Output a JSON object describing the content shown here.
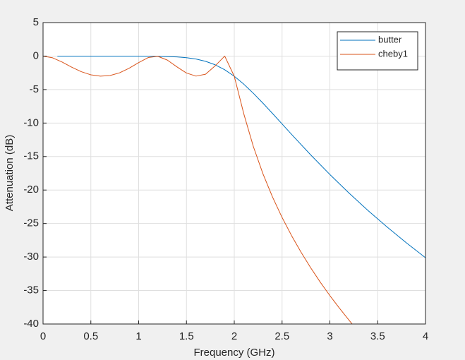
{
  "chart_data": {
    "type": "line",
    "xlabel": "Frequency (GHz)",
    "ylabel": "Attenuation (dB)",
    "xlim": [
      0,
      4
    ],
    "ylim": [
      -40,
      5
    ],
    "xticks": [
      0,
      0.5,
      1,
      1.5,
      2,
      2.5,
      3,
      3.5,
      4
    ],
    "yticks": [
      5,
      0,
      -5,
      -10,
      -15,
      -20,
      -25,
      -30,
      -35,
      -40
    ],
    "grid": true,
    "legend": "northeast",
    "series": [
      {
        "name": "butter",
        "color": "#0072bd",
        "x": [
          0.15,
          0.4,
          0.6,
          0.8,
          1.0,
          1.2,
          1.4,
          1.5,
          1.6,
          1.7,
          1.8,
          1.9,
          2.0,
          2.1,
          2.2,
          2.3,
          2.4,
          2.5,
          2.6,
          2.8,
          3.0,
          3.2,
          3.4,
          3.6,
          3.8,
          4.0
        ],
        "values": [
          0,
          0,
          0,
          0,
          0,
          -0.03,
          -0.12,
          -0.24,
          -0.44,
          -0.78,
          -1.3,
          -2.04,
          -3.01,
          -4.2,
          -5.56,
          -7.03,
          -8.57,
          -10.13,
          -11.7,
          -14.76,
          -17.68,
          -20.45,
          -23.07,
          -25.54,
          -27.88,
          -30.11
        ]
      },
      {
        "name": "cheby1",
        "color": "#d95319",
        "x": [
          0,
          0.1,
          0.2,
          0.3,
          0.4,
          0.5,
          0.6,
          0.7,
          0.8,
          0.9,
          1.0,
          1.1,
          1.2,
          1.3,
          1.4,
          1.5,
          1.6,
          1.7,
          1.8,
          1.9,
          2.0,
          2.1,
          2.2,
          2.3,
          2.4,
          2.5,
          2.6,
          2.7,
          2.8,
          2.9,
          3.0,
          3.1,
          3.2,
          3.25
        ],
        "values": [
          0,
          -0.26,
          -0.9,
          -1.66,
          -2.33,
          -2.8,
          -2.99,
          -2.9,
          -2.5,
          -1.82,
          -0.97,
          -0.22,
          -0.03,
          -0.6,
          -1.61,
          -2.53,
          -2.99,
          -2.71,
          -1.46,
          0,
          -3.01,
          -8.64,
          -13.52,
          -17.57,
          -21.04,
          -24.09,
          -26.82,
          -29.32,
          -31.62,
          -33.76,
          -35.76,
          -37.64,
          -39.43,
          -40.29
        ]
      }
    ]
  }
}
